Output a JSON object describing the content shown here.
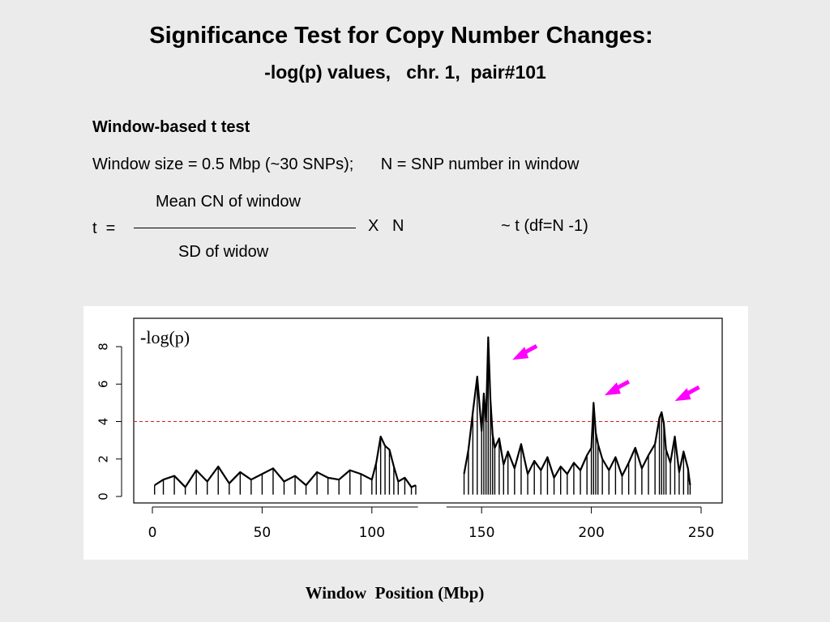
{
  "slide": {
    "title": "Significance Test for Copy Number Changes:",
    "subtitle": "-log(p) values,   chr. 1,  pair#101",
    "heading": "Window-based t test",
    "window_size_line": "Window size = 0.5 Mbp (~30 SNPs);      N = SNP number in window",
    "formula": {
      "lhs": "t  =",
      "numerator": "Mean CN of window",
      "denominator": "SD of widow",
      "multiplier": "X   N",
      "distribution": "~ t (df=N -1)"
    },
    "x_axis_label": "Window  Position (Mbp)"
  },
  "colors": {
    "background": "#ebebeb",
    "plot_background": "#ffffff",
    "signal": "#000000",
    "threshold_line": "#d42020",
    "arrow": "#ff00ff"
  },
  "chart_data": {
    "type": "line",
    "title": "",
    "annotation_text": "log(p)",
    "annotation_prefix": "-",
    "xlabel": "Window  Position (Mbp)",
    "ylabel": "",
    "xlim": [
      0,
      250
    ],
    "ylim": [
      0,
      8
    ],
    "xticks": [
      0,
      50,
      100,
      150,
      200,
      250
    ],
    "yticks": [
      0,
      2,
      4,
      6,
      8
    ],
    "threshold": 4,
    "grid": false,
    "axis_gap": [
      121,
      134
    ],
    "data_gap": [
      121,
      142
    ],
    "series": [
      {
        "x": [
          1,
          5,
          10,
          15,
          20,
          25,
          30,
          35,
          40,
          45,
          50,
          55,
          60,
          65,
          70,
          75,
          80,
          85,
          90,
          95,
          100,
          102,
          104,
          106,
          108,
          110,
          112,
          115,
          118,
          120,
          142,
          144,
          146,
          148,
          150,
          151,
          152,
          153,
          154,
          155,
          156,
          158,
          160,
          162,
          165,
          168,
          171,
          174,
          177,
          180,
          183,
          186,
          189,
          192,
          195,
          198,
          200,
          201,
          202,
          203,
          205,
          208,
          211,
          214,
          217,
          220,
          223,
          226,
          229,
          231,
          232,
          233,
          234,
          236,
          238,
          240,
          242,
          244,
          245
        ],
        "y": [
          0.6,
          0.9,
          1.1,
          0.5,
          1.4,
          0.8,
          1.6,
          0.7,
          1.3,
          0.9,
          1.2,
          1.5,
          0.8,
          1.1,
          0.6,
          1.3,
          1.0,
          0.9,
          1.4,
          1.2,
          0.9,
          1.8,
          3.2,
          2.7,
          2.5,
          1.6,
          0.8,
          1.0,
          0.5,
          0.6,
          1.2,
          2.5,
          4.5,
          6.4,
          3.5,
          5.5,
          4.0,
          8.5,
          5.2,
          3.3,
          2.6,
          3.1,
          1.7,
          2.4,
          1.5,
          2.8,
          1.2,
          1.9,
          1.4,
          2.1,
          1.0,
          1.6,
          1.2,
          1.8,
          1.4,
          2.2,
          2.6,
          5.0,
          3.4,
          2.8,
          2.0,
          1.4,
          2.1,
          1.1,
          1.8,
          2.6,
          1.5,
          2.2,
          2.8,
          4.2,
          4.5,
          3.9,
          2.5,
          1.8,
          3.2,
          1.3,
          2.4,
          1.5,
          0.6
        ]
      }
    ],
    "arrows_at": [
      {
        "x": 164,
        "y": 7.3
      },
      {
        "x": 206,
        "y": 5.4
      },
      {
        "x": 238,
        "y": 5.1
      }
    ]
  }
}
